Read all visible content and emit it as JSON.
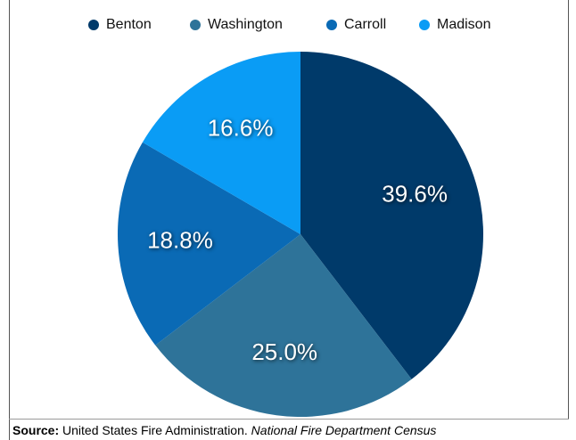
{
  "chart_data": {
    "type": "pie",
    "categories": [
      "Benton",
      "Washington",
      "Carroll",
      "Madison"
    ],
    "values": [
      39.6,
      25.0,
      18.8,
      16.6
    ],
    "value_labels": [
      "39.6%",
      "25.0%",
      "18.8%",
      "16.6%"
    ],
    "colors": [
      "#003a6a",
      "#2e7399",
      "#0a6ab5",
      "#0a9cf5"
    ],
    "legend": "top"
  },
  "source": {
    "label": "Source:",
    "text": "United States Fire Administration.",
    "title": "National Fire Department Census"
  }
}
